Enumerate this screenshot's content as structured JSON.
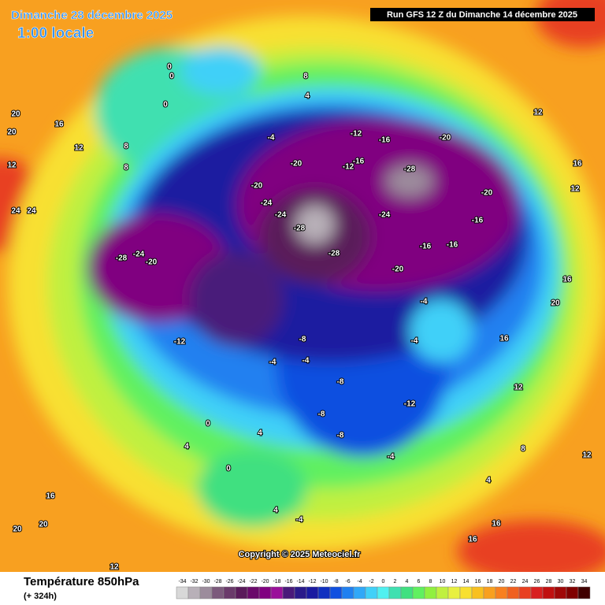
{
  "header": {
    "title": "Dimanche 28 décembre 2025",
    "subtitle": "1:00 locale",
    "run_info": "Run GFS 12 Z du Dimanche 14 décembre 2025"
  },
  "legend": {
    "title": "Température 850hPa",
    "subtitle": "(+ 324h)",
    "ticks": [
      -34,
      -32,
      -30,
      -28,
      -26,
      -24,
      -22,
      -20,
      -18,
      -16,
      -14,
      -12,
      -10,
      -8,
      -6,
      -4,
      -2,
      0,
      2,
      4,
      6,
      8,
      10,
      12,
      14,
      16,
      18,
      20,
      22,
      24,
      26,
      28,
      30,
      32,
      34
    ],
    "colors": [
      "#d8d8d8",
      "#b8b0b8",
      "#9c8c9c",
      "#7c5a7c",
      "#6a3a6a",
      "#5a1a5a",
      "#6a0a6a",
      "#800080",
      "#9a109a",
      "#4a1a7a",
      "#2a1a8a",
      "#1a1aa0",
      "#1030c0",
      "#1050e0",
      "#2080f0",
      "#30a8f8",
      "#40d0f8",
      "#50f0f0",
      "#40e0b0",
      "#40e080",
      "#60f060",
      "#90f040",
      "#c0f040",
      "#e8f040",
      "#f8e030",
      "#f8c020",
      "#f8a020",
      "#f88020",
      "#f06020",
      "#e84020",
      "#d82020",
      "#c01010",
      "#a00808",
      "#800000",
      "#400000"
    ]
  },
  "copyright": "Copyright © 2025 Meteociel.fr",
  "contour_labels": [
    20,
    20,
    24,
    24,
    16,
    12,
    12,
    8,
    0,
    0,
    0,
    8,
    4,
    -4,
    -12,
    -16,
    -12,
    -16,
    -20,
    -20,
    -28,
    -24,
    -20,
    -24,
    -28,
    -28,
    -24,
    -20,
    -28,
    -24,
    -20,
    -16,
    -16,
    -20,
    -16,
    -12,
    -8,
    -4,
    -4,
    -12,
    -8,
    -4,
    -4,
    -8,
    -4,
    0,
    4,
    -4,
    4,
    12,
    16,
    16,
    12,
    16,
    20,
    16,
    12,
    8,
    12,
    16,
    20,
    20,
    12,
    4,
    -8,
    0,
    4,
    8,
    16
  ]
}
